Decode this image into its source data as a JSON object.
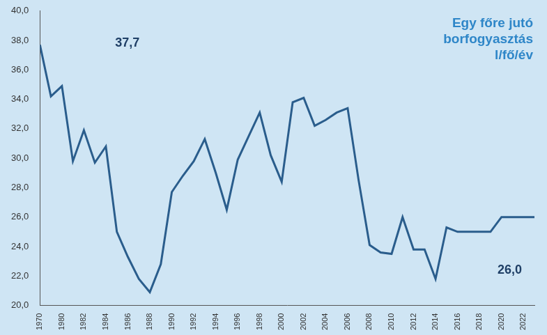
{
  "chart_data": {
    "type": "line",
    "title": [
      "Egy főre jutó",
      "borfogyasztás",
      "l/fő/év"
    ],
    "categories": [
      "1970",
      null,
      "1980",
      null,
      "1982",
      null,
      "1984",
      null,
      "1986",
      null,
      "1988",
      null,
      "1990",
      null,
      "1992",
      null,
      "1994",
      null,
      "1996",
      null,
      "1998",
      null,
      "2000",
      null,
      "2002",
      null,
      "2004",
      null,
      "2006",
      null,
      "2008",
      null,
      "2010",
      null,
      "2012",
      null,
      "2014",
      null,
      "2016",
      null,
      "2018",
      null,
      "2020",
      null,
      "2022",
      null
    ],
    "values": [
      37.7,
      34.2,
      34.9,
      29.8,
      31.9,
      29.7,
      30.8,
      25.0,
      23.3,
      21.8,
      20.9,
      22.8,
      27.7,
      28.8,
      29.8,
      31.3,
      29.0,
      26.5,
      29.9,
      31.5,
      33.1,
      30.2,
      28.4,
      33.8,
      34.1,
      32.2,
      32.6,
      33.1,
      33.4,
      28.5,
      24.1,
      23.6,
      23.5,
      26.0,
      23.8,
      23.8,
      21.8,
      25.3,
      25.0,
      25.0,
      25.0,
      25.0,
      26.0,
      26.0,
      26.0,
      26.0
    ],
    "color": "#2a5d8c",
    "annotations": [
      "37,7",
      "26,0"
    ],
    "ylim": [
      20,
      40
    ],
    "yticks": [
      {
        "value": 20,
        "label": "20,0"
      },
      {
        "value": 22,
        "label": "22,0"
      },
      {
        "value": 24,
        "label": "24,0"
      },
      {
        "value": 26,
        "label": "26,0"
      },
      {
        "value": 28,
        "label": "28,0"
      },
      {
        "value": 30,
        "label": "30,0"
      },
      {
        "value": 32,
        "label": "32,0"
      },
      {
        "value": 34,
        "label": "34,0"
      },
      {
        "value": 36,
        "label": "36,0"
      },
      {
        "value": 38,
        "label": "38,0"
      },
      {
        "value": 40,
        "label": "40,0"
      }
    ],
    "grid": false,
    "marker": "none",
    "line_style": "solid"
  }
}
